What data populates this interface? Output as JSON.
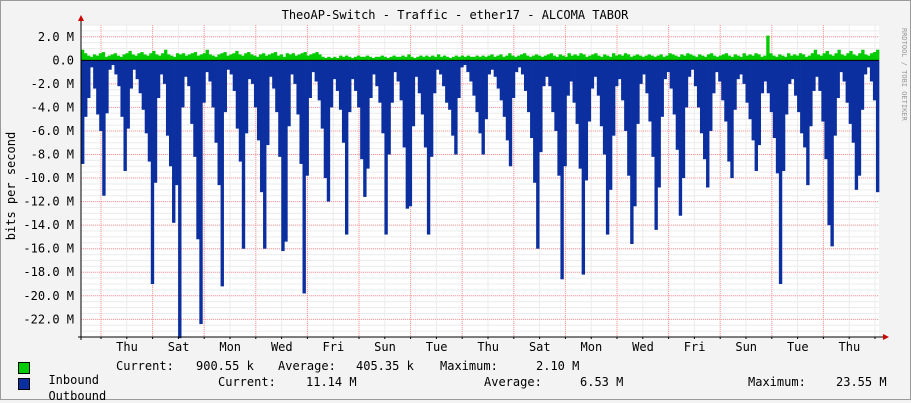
{
  "colors": {
    "inbound": "#00cc00",
    "outbound": "#0c2fa0",
    "grid": "#ff9999",
    "background": "#f3f3f3",
    "plot": "#ffffff"
  },
  "chart_data": {
    "type": "area",
    "title": "TheoAP-Switch - Traffic - ether17 - ALCOMA TABOR",
    "ylabel": "bits per second",
    "ylim": [
      -23.5,
      3.0
    ],
    "yticks": [
      "2.0 M",
      "0.0",
      "-2.0 M",
      "-4.0 M",
      "-6.0 M",
      "-8.0 M",
      "-10.0 M",
      "-12.0 M",
      "-14.0 M",
      "-16.0 M",
      "-18.0 M",
      "-20.0 M",
      "-22.0 M"
    ],
    "xticks": [
      "Thu",
      "Sat",
      "Mon",
      "Wed",
      "Fri",
      "Sun",
      "Tue",
      "Thu",
      "Sat",
      "Mon",
      "Wed",
      "Fri",
      "Sun",
      "Tue",
      "Thu"
    ],
    "watermark": "RRDTOOL / TOBI OETIKER",
    "series": [
      {
        "name": "Inbound",
        "color": "#00cc00",
        "values": [
          0.9,
          0.6,
          0.4,
          0.3,
          0.5,
          0.4,
          0.6,
          0.7,
          0.3,
          0.4,
          0.5,
          0.6,
          0.4,
          0.3,
          0.5,
          0.6,
          0.8,
          0.5,
          0.4,
          0.6,
          0.7,
          0.5,
          0.4,
          0.6,
          0.8,
          0.5,
          0.4,
          0.6,
          0.9,
          0.5,
          0.4,
          0.3,
          0.6,
          0.5,
          0.6,
          0.4,
          0.5,
          0.6,
          0.7,
          0.4,
          0.5,
          0.6,
          0.9,
          0.5,
          0.4,
          0.3,
          0.5,
          0.6,
          0.7,
          0.4,
          0.5,
          0.6,
          0.8,
          0.5,
          0.4,
          0.6,
          0.7,
          0.5,
          0.4,
          0.3,
          0.5,
          0.6,
          0.4,
          0.5,
          0.6,
          0.7,
          0.4,
          0.5,
          0.3,
          0.6,
          0.5,
          0.6,
          0.4,
          0.5,
          0.6,
          0.7,
          0.4,
          0.5,
          0.6,
          0.7,
          0.5,
          0.3,
          0.2,
          0.3,
          0.2,
          0.3,
          0.2,
          0.4,
          0.3,
          0.4,
          0.3,
          0.2,
          0.3,
          0.4,
          0.3,
          0.3,
          0.4,
          0.3,
          0.2,
          0.3,
          0.3,
          0.4,
          0.3,
          0.2,
          0.3,
          0.4,
          0.3,
          0.3,
          0.4,
          0.3,
          0.5,
          0.3,
          0.2,
          0.3,
          0.4,
          0.3,
          0.4,
          0.3,
          0.4,
          0.3,
          0.5,
          0.3,
          0.4,
          0.3,
          0.2,
          0.3,
          0.4,
          0.3,
          0.4,
          0.3,
          0.4,
          0.3,
          0.3,
          0.4,
          0.3,
          0.4,
          0.3,
          0.4,
          0.5,
          0.3,
          0.4,
          0.5,
          0.3,
          0.4,
          0.6,
          0.4,
          0.3,
          0.4,
          0.5,
          0.6,
          0.4,
          0.3,
          0.4,
          0.5,
          0.4,
          0.3,
          0.4,
          0.5,
          0.6,
          0.4,
          0.3,
          0.5,
          0.4,
          0.3,
          0.6,
          0.4,
          0.5,
          0.4,
          0.6,
          0.5,
          0.3,
          0.4,
          0.5,
          0.6,
          0.4,
          0.3,
          0.5,
          0.4,
          0.3,
          0.6,
          0.4,
          0.5,
          0.4,
          0.6,
          0.5,
          0.3,
          0.4,
          0.5,
          0.4,
          0.3,
          0.4,
          0.5,
          0.4,
          0.3,
          0.4,
          0.5,
          0.3,
          0.4,
          0.6,
          0.5,
          0.4,
          0.3,
          0.5,
          0.4,
          0.6,
          0.5,
          0.4,
          0.3,
          0.5,
          0.4,
          0.3,
          0.5,
          0.6,
          0.4,
          0.3,
          0.4,
          0.5,
          0.6,
          0.4,
          0.3,
          0.5,
          0.4,
          0.3,
          0.6,
          0.4,
          0.5,
          0.4,
          0.6,
          0.5,
          0.3,
          0.4,
          2.1,
          0.6,
          0.4,
          0.3,
          0.5,
          0.4,
          0.3,
          0.6,
          0.4,
          0.5,
          0.4,
          0.6,
          0.5,
          0.3,
          0.4,
          0.6,
          0.9,
          0.5,
          0.4,
          0.6,
          0.8,
          0.5,
          0.4,
          0.6,
          0.9,
          0.5,
          0.4,
          0.6,
          0.8,
          0.5,
          0.4,
          0.6,
          0.9,
          0.5,
          0.4,
          0.6,
          0.7,
          0.9
        ]
      },
      {
        "name": "Outbound",
        "color": "#0c2fa0",
        "values": [
          -8.8,
          -4.8,
          -3.2,
          -0.6,
          -2.4,
          -4.6,
          -6.0,
          -11.5,
          -4.5,
          -0.8,
          -0.4,
          -1.2,
          -2.2,
          -4.8,
          -9.4,
          -5.8,
          -2.4,
          -0.8,
          -1.6,
          -2.8,
          -4.2,
          -6.2,
          -8.6,
          -19.0,
          -10.4,
          -3.2,
          -1.2,
          -2.0,
          -6.4,
          -9.0,
          -13.8,
          -10.6,
          -23.6,
          -4.0,
          -1.4,
          -2.2,
          -5.4,
          -8.2,
          -15.2,
          -22.4,
          -3.6,
          -1.0,
          -1.8,
          -4.0,
          -7.0,
          -10.6,
          -19.2,
          -4.4,
          -0.8,
          -1.2,
          -2.6,
          -5.8,
          -8.6,
          -16.0,
          -6.2,
          -1.6,
          -2.0,
          -4.0,
          -6.8,
          -11.2,
          -16.0,
          -7.2,
          -1.4,
          -2.4,
          -4.4,
          -8.2,
          -16.2,
          -15.4,
          -5.6,
          -1.2,
          -2.0,
          -4.6,
          -8.8,
          -19.8,
          -9.8,
          -3.2,
          -1.0,
          -1.8,
          -3.4,
          -5.8,
          -10.0,
          -12.0,
          -4.0,
          -1.6,
          -2.6,
          -4.2,
          -7.0,
          -14.8,
          -4.4,
          -1.6,
          -2.6,
          -4.0,
          -8.4,
          -11.6,
          -9.2,
          -3.2,
          -1.2,
          -2.2,
          -3.6,
          -6.2,
          -14.8,
          -8.0,
          -3.6,
          -1.0,
          -1.8,
          -3.4,
          -7.4,
          -12.6,
          -12.4,
          -5.6,
          -1.4,
          -2.8,
          -4.6,
          -7.4,
          -14.8,
          -8.2,
          -2.8,
          -0.8,
          -1.2,
          -2.2,
          -3.6,
          -4.2,
          -6.4,
          -8.0,
          -3.2,
          -0.6,
          -0.4,
          -1.0,
          -1.8,
          -3.0,
          -4.4,
          -6.2,
          -8.0,
          -5.0,
          -1.2,
          -0.8,
          -1.4,
          -2.4,
          -3.4,
          -4.8,
          -6.8,
          -9.0,
          -3.2,
          -1.0,
          -0.6,
          -1.2,
          -2.6,
          -4.4,
          -6.6,
          -10.4,
          -16.0,
          -7.8,
          -2.2,
          -1.4,
          -2.2,
          -4.4,
          -6.0,
          -9.8,
          -18.6,
          -9.0,
          -3.0,
          -1.8,
          -3.6,
          -5.4,
          -9.2,
          -18.2,
          -10.2,
          -5.2,
          -2.4,
          -1.4,
          -3.0,
          -5.6,
          -8.0,
          -14.8,
          -11.0,
          -6.4,
          -2.2,
          -1.6,
          -3.4,
          -6.0,
          -9.8,
          -15.6,
          -12.4,
          -5.4,
          -2.0,
          -1.2,
          -2.8,
          -5.2,
          -8.2,
          -14.4,
          -10.8,
          -4.8,
          -1.6,
          -1.0,
          -2.4,
          -4.6,
          -7.6,
          -13.2,
          -10.0,
          -4.0,
          -1.4,
          -0.8,
          -2.2,
          -4.0,
          -6.2,
          -8.4,
          -10.8,
          -6.0,
          -2.8,
          -1.0,
          -1.8,
          -3.4,
          -5.2,
          -8.6,
          -10.0,
          -4.2,
          -1.6,
          -1.2,
          -2.0,
          -3.6,
          -5.0,
          -6.8,
          -9.4,
          -7.2,
          -2.8,
          -1.8,
          -2.8,
          -4.4,
          -6.6,
          -9.6,
          -19.0,
          -9.4,
          -4.6,
          -2.0,
          -1.6,
          -3.0,
          -4.4,
          -6.2,
          -7.4,
          -10.6,
          -5.6,
          -2.6,
          -1.4,
          -2.6,
          -5.2,
          -8.4,
          -14.0,
          -15.8,
          -6.4,
          -3.2,
          -1.0,
          -1.8,
          -3.6,
          -5.4,
          -7.0,
          -11.0,
          -9.8,
          -4.2,
          -1.2,
          -0.6,
          -1.8,
          -3.4,
          -11.2
        ]
      }
    ]
  },
  "legend": {
    "inbound": {
      "name": "Inbound",
      "current_label": "Current:",
      "current": "900.55 k",
      "average_label": "Average:",
      "average": "405.35 k",
      "maximum_label": "Maximum:",
      "maximum": "2.10 M"
    },
    "outbound": {
      "name": "Outbound",
      "current_label": "Current:",
      "current": "11.14 M",
      "average_label": "Average:",
      "average": "6.53 M",
      "maximum_label": "Maximum:",
      "maximum": "23.55 M"
    }
  }
}
